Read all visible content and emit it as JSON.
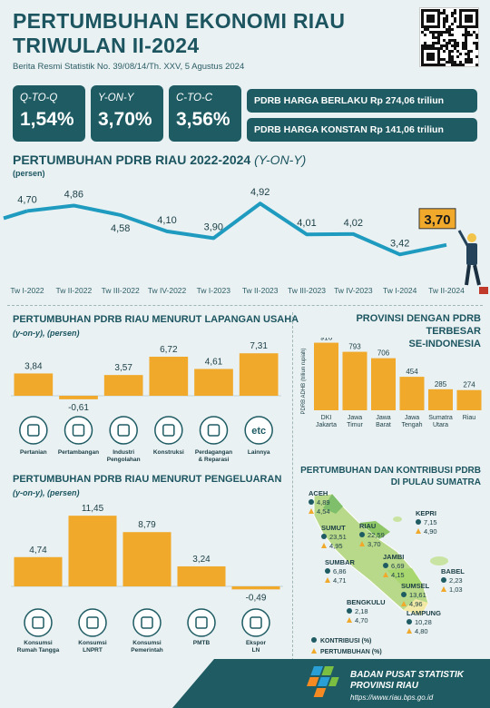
{
  "header": {
    "title_line1": "PERTUMBUHAN EKONOMI RIAU",
    "title_line2": "TRIWULAN II-2024",
    "subtitle": "Berita Resmi Statistik No. 39/08/14/Th. XXV, 5 Agustus 2024"
  },
  "kpis": [
    {
      "label": "Q-TO-Q",
      "value": "1,54%"
    },
    {
      "label": "Y-ON-Y",
      "value": "3,70%"
    },
    {
      "label": "C-TO-C",
      "value": "3,56%"
    }
  ],
  "pdrb": {
    "berlaku": "PDRB HARGA BERLAKU Rp 274,06 triliun",
    "konstan": "PDRB HARGA KONSTAN Rp 141,06 triliun"
  },
  "line_section": {
    "title": "PERTUMBUHAN PDRB RIAU 2022-2024",
    "title_em": "(Y-ON-Y)",
    "unit": "(persen)"
  },
  "lapangan_section": {
    "title": "PERTUMBUHAN PDRB RIAU MENURUT LAPANGAN USAHA",
    "sub": "(y-on-y), (persen)"
  },
  "pengeluaran_section": {
    "title": "PERTUMBUHAN PDRB RIAU MENURUT PENGELUARAN",
    "sub": "(y-on-y), (persen)"
  },
  "provinsi_section": {
    "title_line1": "PROVINSI DENGAN PDRB TERBESAR",
    "title_line2": "SE-INDONESIA"
  },
  "sumatra_section": {
    "title_line1": "PERTUMBUHAN DAN KONTRIBUSI PDRB",
    "title_line2": "DI PULAU SUMATRA"
  },
  "footer": {
    "name_line1": "BADAN PUSAT STATISTIK",
    "name_line2": "PROVINSI RIAU",
    "url": "https://www.riau.bps.go.id"
  },
  "colors": {
    "primary": "#1e5b63",
    "bar": "#f0a92a",
    "line": "#1f9bc0",
    "background": "#e9f1f2"
  },
  "chart_data": [
    {
      "type": "line",
      "categories": [
        "Tw I-2022",
        "Tw II-2022",
        "Tw III-2022",
        "Tw IV-2022",
        "Tw I-2023",
        "Tw II-2023",
        "Tw III-2023",
        "Tw IV-2023",
        "Tw I-2024",
        "Tw II-2024"
      ],
      "values": [
        4.7,
        4.86,
        4.58,
        4.1,
        3.9,
        4.92,
        4.01,
        4.02,
        3.42,
        3.7
      ],
      "labels": [
        "4,70",
        "4,86",
        "4,58",
        "4,10",
        "3,90",
        "4,92",
        "4,01",
        "4,02",
        "3,42",
        "3,70"
      ],
      "ylim": [
        3.0,
        5.3
      ]
    },
    {
      "type": "bar",
      "categories": [
        "Pertanian",
        "Pertambangan",
        "Industri Pengolahan",
        "Konstruksi",
        "Perdagangan & Reparasi",
        "Lainnya"
      ],
      "icons": [
        "plant-icon",
        "mining-icon",
        "factory-icon",
        "construction-icon",
        "trade-icon",
        "etc-icon"
      ],
      "values": [
        3.84,
        -0.61,
        3.57,
        6.72,
        4.61,
        7.31
      ],
      "labels": [
        "3,84",
        "-0,61",
        "3,57",
        "6,72",
        "4,61",
        "7,31"
      ],
      "ylim": [
        -1,
        7.5
      ]
    },
    {
      "type": "bar",
      "categories": [
        "Konsumsi Rumah Tangga",
        "Konsumsi LNPRT",
        "Konsumsi Pemerintah",
        "PMTB",
        "Ekspor LN"
      ],
      "icons": [
        "cart-icon",
        "people-icon",
        "government-icon",
        "building-icon",
        "ship-icon"
      ],
      "values": [
        4.74,
        11.45,
        8.79,
        3.24,
        -0.49
      ],
      "labels": [
        "4,74",
        "11,45",
        "8,79",
        "3,24",
        "-0,49"
      ],
      "ylim": [
        -1,
        12
      ]
    },
    {
      "type": "bar",
      "ylabel": "PDRB ADHB (triliun rupiah)",
      "categories": [
        "DKI Jakarta",
        "Jawa Timur",
        "Jawa Barat",
        "Jawa Tengah",
        "Sumatra Utara",
        "Riau"
      ],
      "values": [
        916,
        793,
        706,
        454,
        285,
        274
      ],
      "ylim": [
        0,
        960
      ]
    },
    {
      "type": "table",
      "legend": [
        "KONTRIBUSI (%)",
        "PERTUMBUHAN (%)"
      ],
      "provinces": [
        {
          "name": "ACEH",
          "kontribusi": "4,89",
          "pertumbuhan": "4,54"
        },
        {
          "name": "SUMUT",
          "kontribusi": "23,51",
          "pertumbuhan": "4,95"
        },
        {
          "name": "RIAU",
          "kontribusi": "22,59",
          "pertumbuhan": "3,70"
        },
        {
          "name": "KEPRI",
          "kontribusi": "7,15",
          "pertumbuhan": "4,90"
        },
        {
          "name": "SUMBAR",
          "kontribusi": "6,86",
          "pertumbuhan": "4,71"
        },
        {
          "name": "JAMBI",
          "kontribusi": "6,69",
          "pertumbuhan": "4,15"
        },
        {
          "name": "BABEL",
          "kontribusi": "2,23",
          "pertumbuhan": "1,03"
        },
        {
          "name": "BENGKULU",
          "kontribusi": "2,18",
          "pertumbuhan": "4,70"
        },
        {
          "name": "SUMSEL",
          "kontribusi": "13,61",
          "pertumbuhan": "4,96"
        },
        {
          "name": "LAMPUNG",
          "kontribusi": "10,28",
          "pertumbuhan": "4,80"
        }
      ]
    }
  ]
}
